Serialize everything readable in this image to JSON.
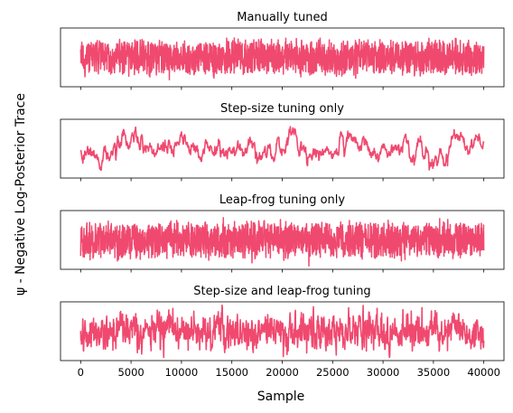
{
  "figure": {
    "ylabel": "ψ - Negative Log-Posterior Trace",
    "xlabel": "Sample"
  },
  "colors": {
    "trace": "#f0496f",
    "axis": "#000000"
  },
  "x_ticks": [
    "0",
    "5000",
    "10000",
    "15000",
    "20000",
    "25000",
    "30000",
    "35000",
    "40000"
  ],
  "chart_data": [
    {
      "type": "line",
      "title": "Manually tuned",
      "xlim": [
        -2000,
        42000
      ],
      "ylim": [
        -1.35,
        1.35
      ],
      "n_samples": 40000,
      "series": [
        {
          "style": "fast-mixing",
          "y_range_approx": [
            -1.0,
            1.0
          ]
        }
      ],
      "y_ticks_visible": false,
      "x_tick_labels_visible": false
    },
    {
      "type": "line",
      "title": "Step-size tuning only",
      "xlim": [
        -2000,
        42000
      ],
      "ylim": [
        -1.35,
        1.35
      ],
      "n_samples": 40000,
      "series": [
        {
          "style": "slow-mixing",
          "y_range_approx": [
            -1.1,
            1.1
          ]
        }
      ],
      "y_ticks_visible": false,
      "x_tick_labels_visible": false
    },
    {
      "type": "line",
      "title": "Leap-frog tuning only",
      "xlim": [
        -2000,
        42000
      ],
      "ylim": [
        -1.35,
        1.35
      ],
      "n_samples": 40000,
      "series": [
        {
          "style": "fast-mixing",
          "y_range_approx": [
            -1.0,
            1.0
          ]
        }
      ],
      "y_ticks_visible": false,
      "x_tick_labels_visible": false
    },
    {
      "type": "line",
      "title": "Step-size and leap-frog tuning",
      "xlim": [
        -2000,
        42000
      ],
      "ylim": [
        -1.35,
        1.35
      ],
      "n_samples": 40000,
      "series": [
        {
          "style": "medium-mixing",
          "y_range_approx": [
            -1.2,
            1.2
          ]
        }
      ],
      "y_ticks_visible": false,
      "x_tick_labels_visible": true
    }
  ]
}
